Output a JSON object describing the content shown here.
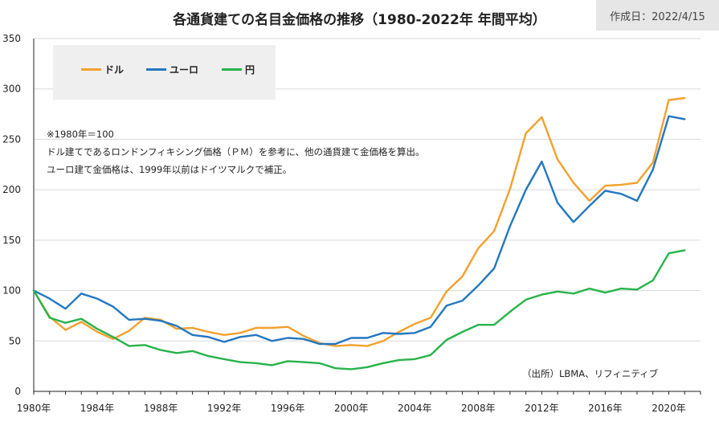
{
  "chart_data": {
    "type": "line",
    "title": "各通貨建ての名目金価格の推移（1980-2022年 年間平均）",
    "date_label": "作成日：2022/4/15",
    "x": [
      1980,
      1981,
      1982,
      1983,
      1984,
      1985,
      1986,
      1987,
      1988,
      1989,
      1990,
      1991,
      1992,
      1993,
      1994,
      1995,
      1996,
      1997,
      1998,
      1999,
      2000,
      2001,
      2002,
      2003,
      2004,
      2005,
      2006,
      2007,
      2008,
      2009,
      2010,
      2011,
      2012,
      2013,
      2014,
      2015,
      2016,
      2017,
      2018,
      2019,
      2020,
      2021,
      2022
    ],
    "xlim": [
      1980,
      2022
    ],
    "x_ticks": [
      1980,
      1984,
      1988,
      1992,
      1996,
      2000,
      2004,
      2008,
      2012,
      2016,
      2020
    ],
    "x_tick_labels": [
      "1980年",
      "1984年",
      "1988年",
      "1992年",
      "1996年",
      "2000年",
      "2004年",
      "2008年",
      "2012年",
      "2016年",
      "2020年"
    ],
    "ylim": [
      0,
      350
    ],
    "y_ticks": [
      0,
      50,
      100,
      150,
      200,
      250,
      300,
      350
    ],
    "y_tick_labels": [
      "0",
      "50",
      "100",
      "150",
      "200",
      "250",
      "300",
      "350"
    ],
    "grid": true,
    "legend_position": "top-left",
    "series": [
      {
        "name": "ドル",
        "color": "#f4a02c",
        "values": [
          100,
          74,
          61,
          69,
          59,
          52,
          60,
          73,
          71,
          62,
          63,
          59,
          56,
          58,
          63,
          63,
          64,
          55,
          48,
          45,
          46,
          45,
          50,
          59,
          67,
          73,
          99,
          114,
          142,
          159,
          201,
          256,
          272,
          230,
          207,
          189,
          204,
          205,
          207,
          227,
          289,
          291,
          null
        ]
      },
      {
        "name": "ユーロ",
        "color": "#2277c0",
        "values": [
          100,
          92,
          82,
          97,
          92,
          84,
          71,
          72,
          70,
          65,
          56,
          54,
          49,
          54,
          56,
          50,
          53,
          52,
          47,
          47,
          53,
          53,
          58,
          57,
          58,
          64,
          85,
          90,
          105,
          122,
          164,
          200,
          228,
          187,
          168,
          184,
          199,
          196,
          189,
          220,
          273,
          270,
          null
        ]
      },
      {
        "name": "円",
        "color": "#27b34a",
        "values": [
          100,
          73,
          68,
          72,
          62,
          54,
          45,
          46,
          41,
          38,
          40,
          35,
          32,
          29,
          28,
          26,
          30,
          29,
          28,
          23,
          22,
          24,
          28,
          31,
          32,
          36,
          51,
          59,
          66,
          66,
          79,
          91,
          96,
          99,
          97,
          102,
          98,
          102,
          101,
          110,
          137,
          140,
          null
        ]
      }
    ]
  },
  "notes": [
    "※1980年＝100",
    "ドル建てであるロンドンフィキシング価格（ＰＭ）を参考に、他の通貨建て金価格を算出。",
    "ユーロ建て金価格は、1999年以前はドイツマルクで補正。"
  ],
  "source": "（出所）LBMA、リフィニティブ"
}
